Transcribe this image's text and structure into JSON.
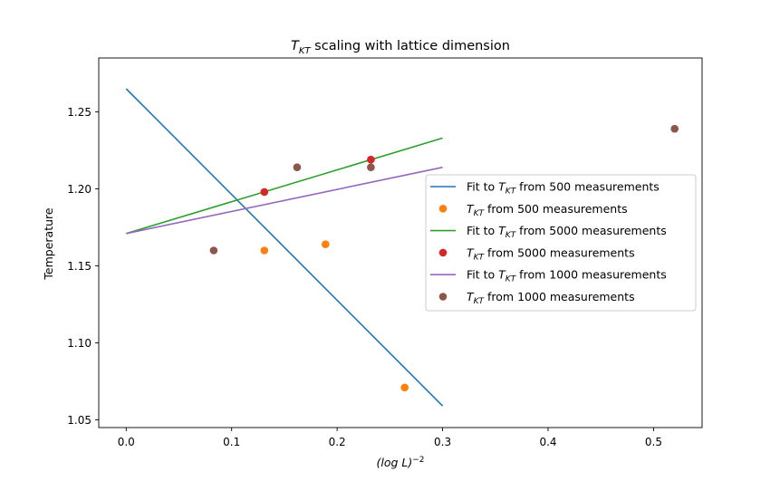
{
  "chart_data": {
    "type": "scatter",
    "title": {
      "prefix": "T",
      "sub": "KT",
      "suffix": " scaling with lattice dimension"
    },
    "xlabel": {
      "base": "(log L)",
      "sup": "−2"
    },
    "ylabel": "Temperature",
    "xlim": [
      -0.026,
      0.546
    ],
    "ylim": [
      1.045,
      1.285
    ],
    "xticks": [
      0.0,
      0.1,
      0.2,
      0.3,
      0.4,
      0.5
    ],
    "xtick_labels": [
      "0.0",
      "0.1",
      "0.2",
      "0.3",
      "0.4",
      "0.5"
    ],
    "yticks": [
      1.05,
      1.1,
      1.15,
      1.2,
      1.25
    ],
    "ytick_labels": [
      "1.05",
      "1.10",
      "1.15",
      "1.20",
      "1.25"
    ],
    "grid": false,
    "legend_position": "center-right",
    "series": [
      {
        "kind": "line",
        "name": "Fit to T_KT from 500 measurements",
        "label_pre": "Fit to ",
        "label_post": " from 500 measurements",
        "color": "#1f77b4",
        "x": [
          0.0,
          0.3
        ],
        "y": [
          1.265,
          1.059
        ]
      },
      {
        "kind": "scatter",
        "name": "T_KT from 500 measurements",
        "label_pre": "",
        "label_post": " from 500 measurements",
        "color": "#ff7f0e",
        "x": [
          0.131,
          0.189,
          0.264
        ],
        "y": [
          1.16,
          1.164,
          1.071
        ]
      },
      {
        "kind": "line",
        "name": "Fit to T_KT from 5000 measurements",
        "label_pre": "Fit to ",
        "label_post": " from 5000 measurements",
        "color": "#2ca02c",
        "x": [
          0.0,
          0.3
        ],
        "y": [
          1.171,
          1.233
        ]
      },
      {
        "kind": "scatter",
        "name": "T_KT from 5000 measurements",
        "label_pre": "",
        "label_post": " from 5000 measurements",
        "color": "#d62728",
        "x": [
          0.131,
          0.232
        ],
        "y": [
          1.198,
          1.219
        ]
      },
      {
        "kind": "line",
        "name": "Fit to T_KT from 1000 measurements",
        "label_pre": "Fit to ",
        "label_post": " from 1000 measurements",
        "color": "#9467bd",
        "x": [
          0.0,
          0.3
        ],
        "y": [
          1.171,
          1.214
        ]
      },
      {
        "kind": "scatter",
        "name": "T_KT from 1000 measurements",
        "label_pre": "",
        "label_post": " from 1000 measurements",
        "color": "#8c564b",
        "x": [
          0.083,
          0.162,
          0.232,
          0.52
        ],
        "y": [
          1.16,
          1.214,
          1.214,
          1.239
        ]
      }
    ]
  }
}
